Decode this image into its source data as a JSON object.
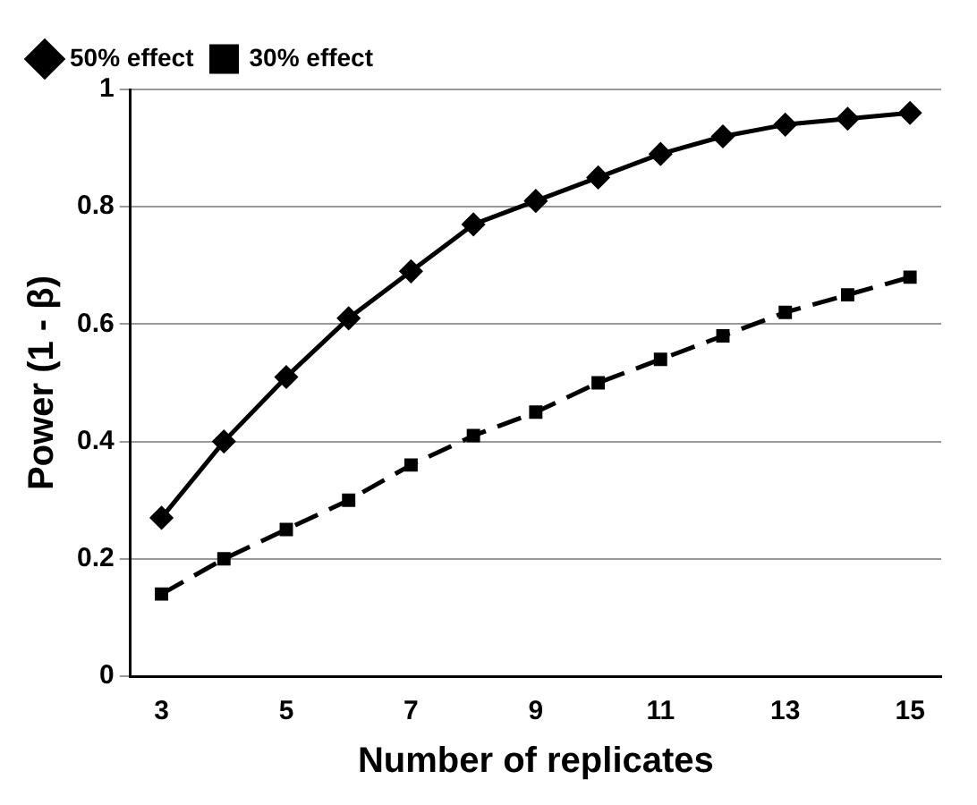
{
  "chart_data": {
    "type": "line",
    "xlabel": "Number of replicates",
    "ylabel": "Power (1 - β)",
    "categories": [
      "3",
      null,
      "5",
      null,
      "7",
      null,
      "9",
      null,
      "11",
      null,
      "13",
      null,
      "15"
    ],
    "series": [
      {
        "name": "50% effect",
        "color": "#000000",
        "marker": "diamond",
        "line_style": "solid",
        "values": [
          0.27,
          0.4,
          0.51,
          0.61,
          0.69,
          0.77,
          0.81,
          0.85,
          0.89,
          0.92,
          0.94,
          0.95,
          0.96
        ]
      },
      {
        "name": "30% effect",
        "color": "#000000",
        "marker": "square",
        "line_style": "dashed",
        "values": [
          0.14,
          0.2,
          0.25,
          0.3,
          0.36,
          0.41,
          0.45,
          0.5,
          0.54,
          0.58,
          0.62,
          0.65,
          0.68
        ]
      }
    ],
    "ylim": [
      0,
      1
    ],
    "yticks": [
      0,
      0.2,
      0.4,
      0.6,
      0.8,
      1
    ],
    "grid": "y",
    "legend": "top left"
  }
}
